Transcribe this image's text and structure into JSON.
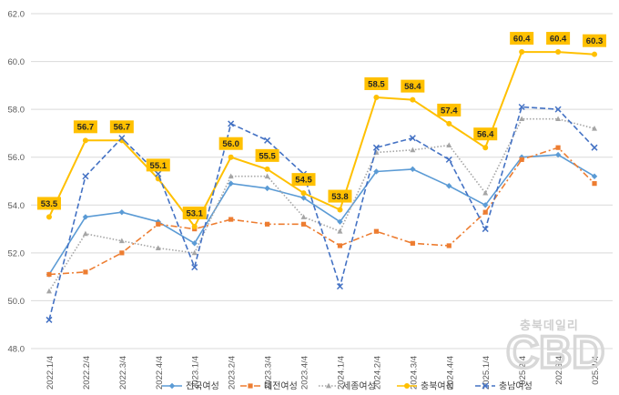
{
  "chart_data": {
    "type": "line",
    "ylim": [
      48.0,
      62.0
    ],
    "yticks": [
      "48.0",
      "50.0",
      "52.0",
      "54.0",
      "56.0",
      "58.0",
      "60.0",
      "62.0"
    ],
    "ytick_values": [
      48,
      50,
      52,
      54,
      56,
      58,
      60,
      62
    ],
    "categories": [
      "2022.1/4",
      "2022.2/4",
      "2022.3/4",
      "2022.4/4",
      "2023.1/4",
      "2023.2/4",
      "2023.3/4",
      "2023.4/4",
      "2024.1/4",
      "2024.2/4",
      "2024.3/4",
      "2024.4/4",
      "2025.1/4",
      "2025.2/4",
      "2025.3/4",
      "2025.4/4"
    ],
    "category_labels": [
      "2022.1/4",
      "2022.2/4",
      "2022.3/4",
      "2022.4/4",
      "2023.1/4",
      "2023.2/4",
      "2023.3/4",
      "2023.4/4",
      "2024.1/4",
      "2024.2/4",
      "2024.3/4",
      "2024.4/4",
      "2025.1/4",
      "025.2/4",
      "202.3/4",
      "025.4/4"
    ],
    "grid": "horizontal",
    "legend_position": "bottom",
    "series": [
      {
        "name": "전국여성",
        "color": "#5B9BD5",
        "style": "solid-diamond",
        "values": [
          51.1,
          53.5,
          53.7,
          53.3,
          52.4,
          54.9,
          54.7,
          54.3,
          53.3,
          55.4,
          55.5,
          54.8,
          54.0,
          56.0,
          56.1,
          55.2
        ]
      },
      {
        "name": "대전여성",
        "color": "#ED7D31",
        "style": "dashdot-square",
        "values": [
          51.1,
          51.2,
          52.0,
          53.2,
          53.0,
          53.4,
          53.2,
          53.2,
          52.3,
          52.9,
          52.4,
          52.3,
          53.7,
          55.9,
          56.4,
          54.9
        ]
      },
      {
        "name": "세종여성",
        "color": "#A5A5A5",
        "style": "dotted-triangle",
        "values": [
          50.4,
          52.8,
          52.5,
          52.2,
          52.0,
          55.2,
          55.2,
          53.5,
          52.9,
          56.2,
          56.3,
          56.5,
          54.5,
          57.6,
          57.6,
          57.2
        ]
      },
      {
        "name": "충북여성",
        "color": "#FFC000",
        "style": "solid-circle",
        "values": [
          53.5,
          56.7,
          56.7,
          55.1,
          53.1,
          56.0,
          55.5,
          54.5,
          53.8,
          58.5,
          58.4,
          57.4,
          56.4,
          60.4,
          60.4,
          60.3
        ]
      },
      {
        "name": "충남여성",
        "color": "#4472C4",
        "style": "dashed-x",
        "values": [
          49.2,
          55.2,
          56.8,
          55.3,
          51.4,
          57.4,
          56.7,
          55.3,
          50.6,
          56.4,
          56.8,
          55.9,
          53.0,
          58.1,
          58.0,
          56.4
        ]
      }
    ],
    "data_labels": {
      "series": "충북여성",
      "texts": [
        "53.5",
        "56.7",
        "56.7",
        "55.1",
        "53.1",
        "56.0",
        "55.5",
        "54.5",
        "53.8",
        "58.5",
        "58.4",
        "57.4",
        "56.4",
        "60.4",
        "60.4",
        "60.3"
      ]
    }
  },
  "watermark": {
    "small": "충북데일리",
    "big": "CBD"
  }
}
